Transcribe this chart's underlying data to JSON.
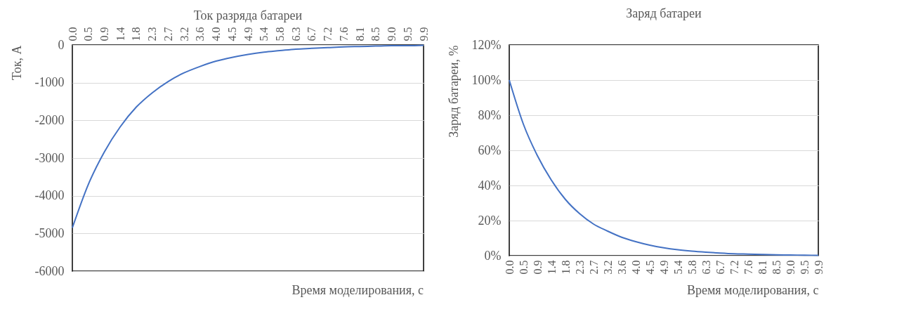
{
  "chart_data": [
    {
      "type": "line",
      "title": "Ток разряда батареи",
      "xlabel": "Время моделирования, с",
      "ylabel": "Ток, А",
      "x": [
        0,
        0.45,
        0.9,
        1.35,
        1.8,
        2.25,
        2.7,
        3.15,
        3.6,
        4.05,
        4.5,
        4.95,
        5.4,
        5.85,
        6.3,
        6.75,
        7.2,
        7.65,
        8.1,
        8.55,
        9.0,
        9.45,
        9.9
      ],
      "series": [
        {
          "color": "#4472c4",
          "values": [
            -4850,
            -3700,
            -2840,
            -2170,
            -1650,
            -1270,
            -970,
            -740,
            -570,
            -430,
            -330,
            -250,
            -190,
            -150,
            -110,
            -90,
            -70,
            -50,
            -40,
            -30,
            -20,
            -20,
            -10
          ]
        }
      ],
      "xlim": [
        0,
        9.9
      ],
      "xticks": [
        {
          "value": 0,
          "label": "0.0"
        },
        {
          "value": 0.45,
          "label": "0.5"
        },
        {
          "value": 0.9,
          "label": "0.9"
        },
        {
          "value": 1.35,
          "label": "1.4"
        },
        {
          "value": 1.8,
          "label": "1.8"
        },
        {
          "value": 2.25,
          "label": "2.3"
        },
        {
          "value": 2.7,
          "label": "2.7"
        },
        {
          "value": 3.15,
          "label": "3.2"
        },
        {
          "value": 3.6,
          "label": "3.6"
        },
        {
          "value": 4.05,
          "label": "4.0"
        },
        {
          "value": 4.5,
          "label": "4.5"
        },
        {
          "value": 4.95,
          "label": "4.9"
        },
        {
          "value": 5.4,
          "label": "5.4"
        },
        {
          "value": 5.85,
          "label": "5.8"
        },
        {
          "value": 6.3,
          "label": "6.3"
        },
        {
          "value": 6.75,
          "label": "6.7"
        },
        {
          "value": 7.2,
          "label": "7.2"
        },
        {
          "value": 7.65,
          "label": "7.6"
        },
        {
          "value": 8.1,
          "label": "8.1"
        },
        {
          "value": 8.55,
          "label": "8.5"
        },
        {
          "value": 9.0,
          "label": "9.0"
        },
        {
          "value": 9.45,
          "label": "9.5"
        },
        {
          "value": 9.9,
          "label": "9.9"
        }
      ],
      "ylim": [
        -6000,
        0
      ],
      "yticks": [
        -6000,
        -5000,
        -4000,
        -3000,
        -2000,
        -1000,
        0
      ],
      "grid": "y",
      "legend": false,
      "marker": "none",
      "line_style": "solid"
    },
    {
      "type": "line",
      "title": "Заряд батареи",
      "xlabel": "Время моделирования, с",
      "ylabel": "Заряд батареи, %",
      "x": [
        0,
        0.45,
        0.9,
        1.35,
        1.8,
        2.25,
        2.7,
        3.15,
        3.6,
        4.05,
        4.5,
        4.95,
        5.4,
        5.85,
        6.3,
        6.75,
        7.2,
        7.65,
        8.1,
        8.55,
        9.0,
        9.45,
        9.9
      ],
      "series": [
        {
          "color": "#4472c4",
          "values": [
            100,
            75,
            57,
            43,
            32,
            24,
            18,
            14,
            10.5,
            8,
            6,
            4.5,
            3.4,
            2.6,
            2,
            1.5,
            1.1,
            0.9,
            0.7,
            0.5,
            0.4,
            0.3,
            0.2
          ]
        }
      ],
      "xlim": [
        0,
        9.9
      ],
      "xticks": [
        {
          "value": 0,
          "label": "0.0"
        },
        {
          "value": 0.45,
          "label": "0.5"
        },
        {
          "value": 0.9,
          "label": "0.9"
        },
        {
          "value": 1.35,
          "label": "1.4"
        },
        {
          "value": 1.8,
          "label": "1.8"
        },
        {
          "value": 2.25,
          "label": "2.3"
        },
        {
          "value": 2.7,
          "label": "2.7"
        },
        {
          "value": 3.15,
          "label": "3.2"
        },
        {
          "value": 3.6,
          "label": "3.6"
        },
        {
          "value": 4.05,
          "label": "4.0"
        },
        {
          "value": 4.5,
          "label": "4.5"
        },
        {
          "value": 4.95,
          "label": "4.9"
        },
        {
          "value": 5.4,
          "label": "5.4"
        },
        {
          "value": 5.85,
          "label": "5.8"
        },
        {
          "value": 6.3,
          "label": "6.3"
        },
        {
          "value": 6.75,
          "label": "6.7"
        },
        {
          "value": 7.2,
          "label": "7.2"
        },
        {
          "value": 7.65,
          "label": "7.6"
        },
        {
          "value": 8.1,
          "label": "8.1"
        },
        {
          "value": 8.55,
          "label": "8.5"
        },
        {
          "value": 9.0,
          "label": "9.0"
        },
        {
          "value": 9.45,
          "label": "9.5"
        },
        {
          "value": 9.9,
          "label": "9.9"
        }
      ],
      "ylim": [
        0,
        120
      ],
      "yticks": [
        {
          "value": 0,
          "label": "0%"
        },
        {
          "value": 20,
          "label": "20%"
        },
        {
          "value": 40,
          "label": "40%"
        },
        {
          "value": 60,
          "label": "60%"
        },
        {
          "value": 80,
          "label": "80%"
        },
        {
          "value": 100,
          "label": "100%"
        },
        {
          "value": 120,
          "label": "120%"
        }
      ],
      "grid": "y",
      "legend": false,
      "marker": "none",
      "line_style": "solid"
    }
  ]
}
